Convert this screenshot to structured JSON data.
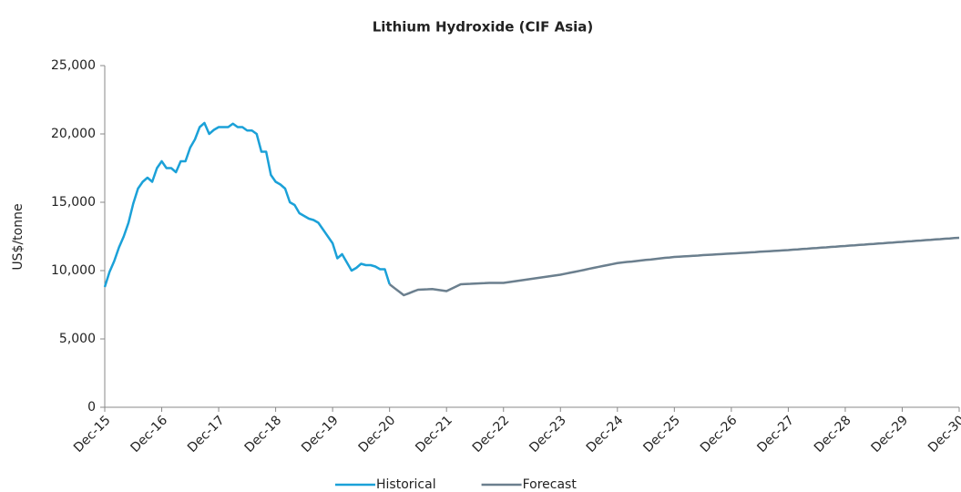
{
  "chart_data": {
    "type": "line",
    "title": "Lithium Hydroxide (CIF Asia)",
    "y_label": "US$/tonne",
    "categories": [
      "Dec-15",
      null,
      null,
      null,
      null,
      null,
      null,
      null,
      null,
      null,
      null,
      null,
      "Dec-16",
      null,
      null,
      null,
      null,
      null,
      null,
      null,
      null,
      null,
      null,
      null,
      "Dec-17",
      null,
      null,
      null,
      null,
      null,
      null,
      null,
      null,
      null,
      null,
      null,
      "Dec-18",
      null,
      null,
      null,
      null,
      null,
      null,
      null,
      null,
      null,
      null,
      null,
      "Dec-19",
      null,
      null,
      null,
      null,
      null,
      null,
      null,
      null,
      null,
      null,
      null,
      "Dec-20",
      null,
      null,
      null,
      null,
      null,
      null,
      null,
      null,
      null,
      null,
      null,
      "Dec-21",
      null,
      null,
      null,
      null,
      null,
      null,
      null,
      null,
      null,
      null,
      null,
      "Dec-22",
      null,
      null,
      null,
      null,
      null,
      null,
      null,
      null,
      null,
      null,
      null,
      "Dec-23",
      null,
      null,
      null,
      null,
      null,
      null,
      null,
      null,
      null,
      null,
      null,
      "Dec-24",
      null,
      null,
      null,
      null,
      null,
      null,
      null,
      null,
      null,
      null,
      null,
      "Dec-25",
      null,
      null,
      null,
      null,
      null,
      null,
      null,
      null,
      null,
      null,
      null,
      "Dec-26",
      null,
      null,
      null,
      null,
      null,
      null,
      null,
      null,
      null,
      null,
      null,
      "Dec-27",
      null,
      null,
      null,
      null,
      null,
      null,
      null,
      null,
      null,
      null,
      null,
      "Dec-28",
      null,
      null,
      null,
      null,
      null,
      null,
      null,
      null,
      null,
      null,
      null,
      "Dec-29",
      null,
      null,
      null,
      null,
      null,
      null,
      null,
      null,
      null,
      null,
      null,
      "Dec-30"
    ],
    "series": [
      {
        "name": "Historical",
        "color": "#1ba1d8",
        "values": [
          8800,
          9900,
          10700,
          11700,
          12500,
          13500,
          14900,
          16000,
          16500,
          16800,
          16500,
          17500,
          18000,
          17500,
          17500,
          17200,
          18000,
          18000,
          19000,
          19600,
          20500,
          20800,
          20000,
          20300,
          20500,
          20500,
          20500,
          20750,
          20500,
          20500,
          20250,
          20250,
          20000,
          18700,
          18700,
          17000,
          16500,
          16300,
          16000,
          15000,
          14800,
          14200,
          14000,
          13800,
          13700,
          13500,
          13000,
          12500,
          12000,
          10900,
          11200,
          10600,
          10000,
          10200,
          10500,
          10400,
          10400,
          10300,
          10100,
          10100,
          9000,
          null,
          null,
          null,
          null,
          null,
          null,
          null,
          null,
          null,
          null,
          null,
          null,
          null,
          null,
          null,
          null,
          null,
          null,
          null,
          null,
          null,
          null,
          null,
          null,
          null,
          null,
          null,
          null,
          null,
          null,
          null,
          null,
          null,
          null,
          null,
          null,
          null,
          null,
          null,
          null,
          null,
          null,
          null,
          null,
          null,
          null,
          null,
          null,
          null,
          null,
          null,
          null,
          null,
          null,
          null,
          null,
          null,
          null,
          null,
          null,
          null,
          null,
          null,
          null,
          null,
          null,
          null,
          null,
          null,
          null,
          null,
          null,
          null,
          null,
          null,
          null,
          null,
          null,
          null,
          null,
          null,
          null,
          null,
          null,
          null,
          null,
          null,
          null,
          null,
          null,
          null,
          null,
          null,
          null,
          null,
          null,
          null,
          null,
          null,
          null,
          null,
          null,
          null,
          null,
          null,
          null,
          null,
          null,
          null,
          null,
          null,
          null,
          null,
          null,
          null,
          null,
          null,
          null,
          null,
          null
        ]
      },
      {
        "name": "Forecast",
        "color": "#6b7f8e",
        "values": [
          null,
          null,
          null,
          null,
          null,
          null,
          null,
          null,
          null,
          null,
          null,
          null,
          null,
          null,
          null,
          null,
          null,
          null,
          null,
          null,
          null,
          null,
          null,
          null,
          null,
          null,
          null,
          null,
          null,
          null,
          null,
          null,
          null,
          null,
          null,
          null,
          null,
          null,
          null,
          null,
          null,
          null,
          null,
          null,
          null,
          null,
          null,
          null,
          null,
          null,
          null,
          null,
          null,
          null,
          null,
          null,
          null,
          null,
          null,
          null,
          9000,
          8730,
          8470,
          8200,
          8330,
          8470,
          8600,
          8620,
          8630,
          8650,
          8600,
          8550,
          8500,
          8670,
          8830,
          9000,
          9020,
          9030,
          9050,
          9070,
          9080,
          9100,
          9100,
          9100,
          9100,
          9150,
          9200,
          9250,
          9300,
          9350,
          9400,
          9450,
          9500,
          9550,
          9600,
          9650,
          9700,
          9770,
          9840,
          9910,
          9980,
          10050,
          10130,
          10200,
          10270,
          10340,
          10410,
          10480,
          10550,
          10590,
          10630,
          10660,
          10700,
          10740,
          10780,
          10810,
          10850,
          10890,
          10930,
          10960,
          11000,
          11020,
          11040,
          11060,
          11080,
          11100,
          11130,
          11150,
          11170,
          11190,
          11210,
          11230,
          11250,
          11270,
          11290,
          11310,
          11330,
          11350,
          11380,
          11400,
          11420,
          11440,
          11460,
          11480,
          11500,
          11530,
          11550,
          11580,
          11600,
          11630,
          11650,
          11680,
          11700,
          11730,
          11750,
          11780,
          11800,
          11830,
          11850,
          11880,
          11900,
          11930,
          11950,
          11980,
          12000,
          12030,
          12050,
          12080,
          12100,
          12130,
          12150,
          12180,
          12200,
          12230,
          12250,
          12280,
          12300,
          12330,
          12350,
          12380,
          12400
        ]
      }
    ],
    "ylim": [
      0,
      25000
    ],
    "yticks": [
      {
        "value": 0,
        "label": "0"
      },
      {
        "value": 5000,
        "label": "5,000"
      },
      {
        "value": 10000,
        "label": "10,000"
      },
      {
        "value": 15000,
        "label": "15,000"
      },
      {
        "value": 20000,
        "label": "20,000"
      },
      {
        "value": 25000,
        "label": "25,000"
      }
    ],
    "grid": false,
    "legend": "bottom"
  }
}
